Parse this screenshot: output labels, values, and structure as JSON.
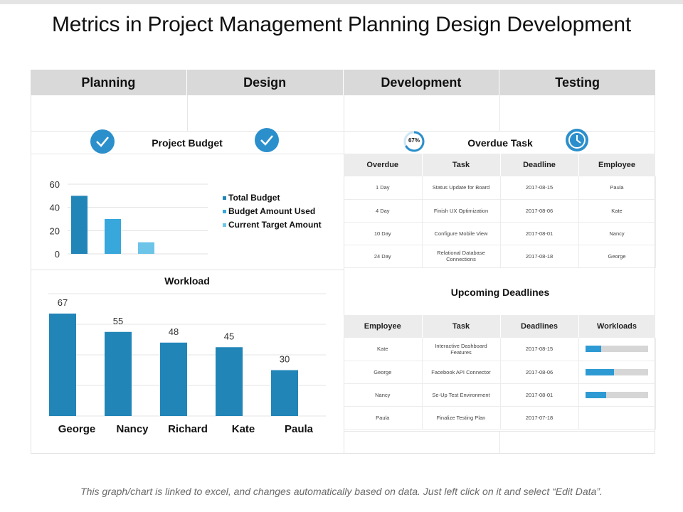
{
  "title": "Metrics in Project Management Planning Design Development",
  "tabs": [
    "Planning",
    "Design",
    "Development",
    "Testing"
  ],
  "sections": {
    "project_budget": "Project Budget",
    "overdue_task": "Overdue Task",
    "workload": "Workload",
    "upcoming_deadlines": "Upcoming Deadlines"
  },
  "icons": {
    "progress_ring_label": "67%",
    "accent": "#2b8fcc"
  },
  "overdue_table": {
    "headers": [
      "Overdue",
      "Task",
      "Deadline",
      "Employee"
    ],
    "rows": [
      [
        "1 Day",
        "Status Update for Board",
        "2017-08-15",
        "Paula"
      ],
      [
        "4 Day",
        "Finish UX Optimization",
        "2017-08-06",
        "Kate"
      ],
      [
        "10 Day",
        "Configure Mobile View",
        "2017-08-01",
        "Nancy"
      ],
      [
        "24 Day",
        "Relational Database Connections",
        "2017-08-18",
        "George"
      ]
    ]
  },
  "deadlines_table": {
    "headers": [
      "Employee",
      "Task",
      "Deadlines",
      "Workloads"
    ],
    "rows": [
      {
        "employee": "Kate",
        "task": "Interactive Dashboard Features",
        "deadline": "2017-08-15",
        "workload": 0.25
      },
      {
        "employee": "George",
        "task": "Facebook API Connector",
        "deadline": "2017-08-06",
        "workload": 0.45
      },
      {
        "employee": "Nancy",
        "task": "Se-Up Test Environment",
        "deadline": "2017-08-01",
        "workload": 0.33
      },
      {
        "employee": "Paula",
        "task": "Finalize Testing Plan",
        "deadline": "2017-07-18",
        "workload": null
      }
    ]
  },
  "chart_data": [
    {
      "type": "bar",
      "title": "Project Budget",
      "series": [
        {
          "name": "Total Budget",
          "values": [
            50
          ],
          "color": "#2185b8"
        },
        {
          "name": "Budget Amount Used",
          "values": [
            30
          ],
          "color": "#38a7dc"
        },
        {
          "name": "Current Target Amount",
          "values": [
            10
          ],
          "color": "#6cc4e8"
        }
      ],
      "yticks": [
        0,
        20,
        40,
        60
      ],
      "ylim": [
        0,
        60
      ],
      "legend": "right"
    },
    {
      "type": "bar",
      "title": "Workload",
      "categories": [
        "George",
        "Nancy",
        "Richard",
        "Kate",
        "Paula"
      ],
      "values": [
        67,
        55,
        48,
        45,
        30
      ],
      "color": "#2185b8",
      "ylim": [
        0,
        80
      ]
    }
  ],
  "footnote": "This graph/chart is linked to excel, and changes automatically based on data.  Just left click on it and select “Edit Data”."
}
